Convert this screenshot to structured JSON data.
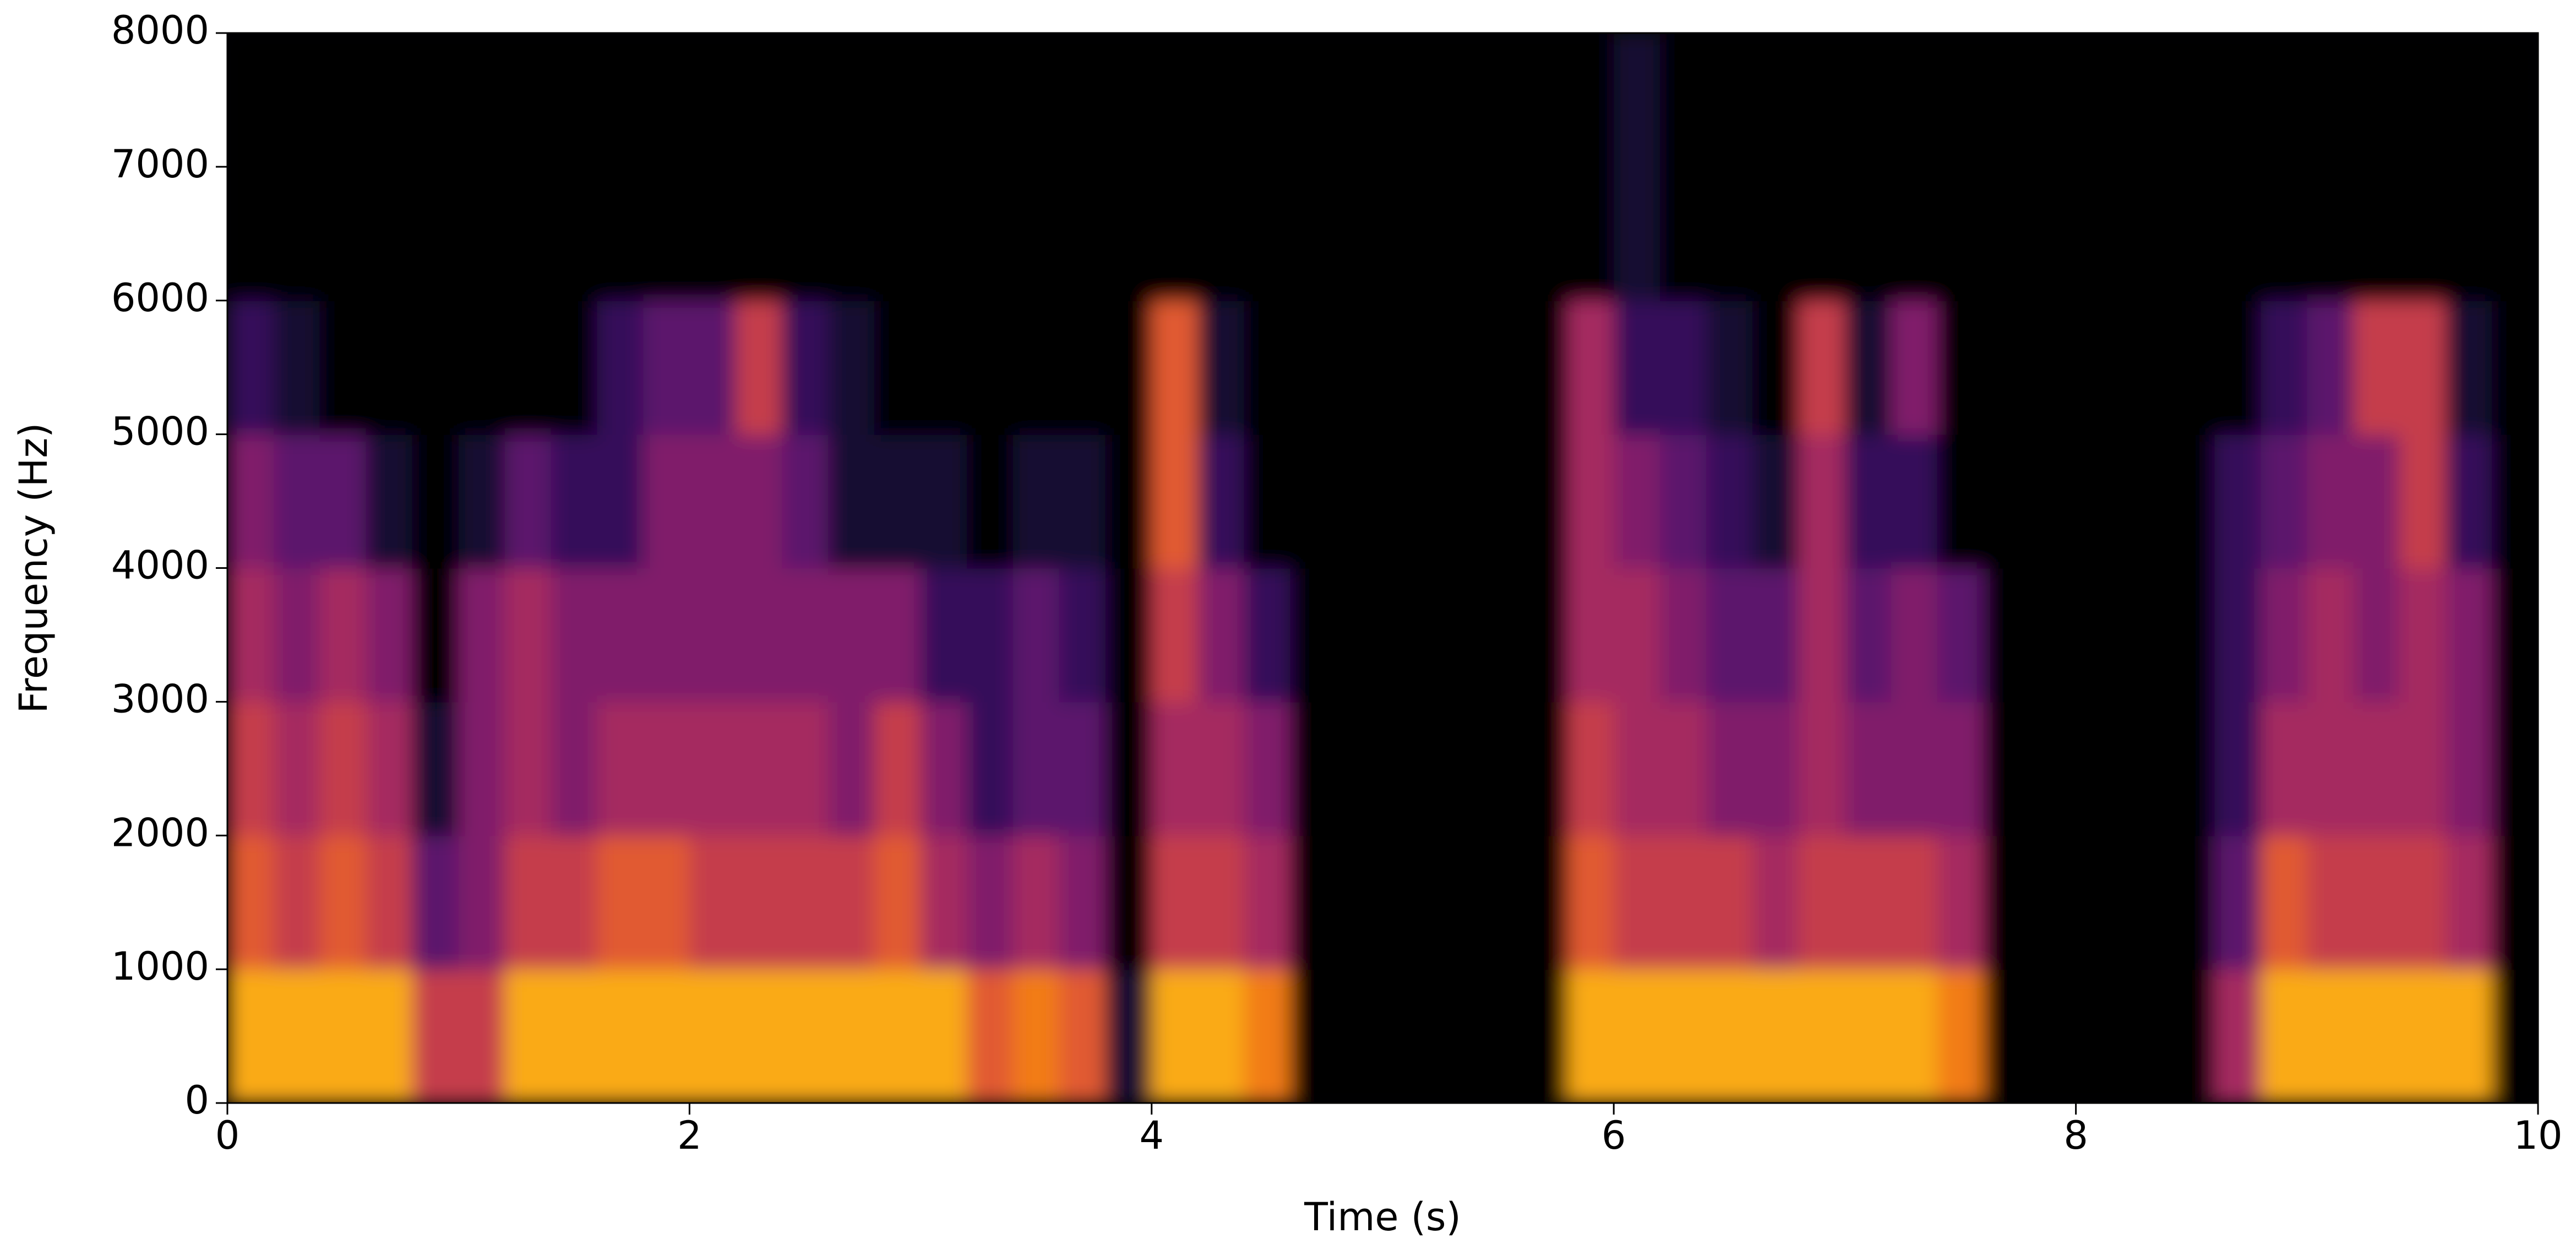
{
  "chart_data": {
    "type": "spectrogram",
    "x_label": "Time (s)",
    "y_label": "Frequency (Hz)",
    "xlim": [
      0,
      10
    ],
    "ylim": [
      0,
      8000
    ],
    "xticks": [
      0,
      2,
      4,
      6,
      8,
      10
    ],
    "yticks": [
      0,
      1000,
      2000,
      3000,
      4000,
      5000,
      6000,
      7000,
      8000
    ],
    "colormap": "inferno",
    "z": [
      [
        0.9,
        0.9,
        0.9,
        0.9,
        0.6,
        0.6,
        0.9,
        0.9,
        0.9,
        0.9,
        0.9,
        0.9,
        0.9,
        0.9,
        0.9,
        0.9,
        0.7,
        0.8,
        0.7,
        0.1,
        0.9,
        0.9,
        0.8,
        0,
        0,
        0,
        0,
        0,
        0,
        0.9,
        0.9,
        0.9,
        0.9,
        0.9,
        0.9,
        0.9,
        0.9,
        0.8,
        0,
        0,
        0,
        0,
        0,
        0.5,
        0.9,
        0.9,
        0.9,
        0.9,
        0.9,
        0
      ],
      [
        0.7,
        0.6,
        0.7,
        0.6,
        0.3,
        0.4,
        0.6,
        0.6,
        0.7,
        0.7,
        0.6,
        0.6,
        0.6,
        0.6,
        0.7,
        0.5,
        0.4,
        0.5,
        0.4,
        0,
        0.6,
        0.6,
        0.5,
        0,
        0,
        0,
        0,
        0,
        0,
        0.7,
        0.6,
        0.6,
        0.6,
        0.5,
        0.6,
        0.6,
        0.6,
        0.5,
        0,
        0,
        0,
        0,
        0,
        0.3,
        0.7,
        0.6,
        0.6,
        0.6,
        0.5,
        0
      ],
      [
        0.6,
        0.5,
        0.6,
        0.5,
        0.1,
        0.4,
        0.5,
        0.4,
        0.5,
        0.5,
        0.5,
        0.5,
        0.5,
        0.4,
        0.6,
        0.4,
        0.2,
        0.3,
        0.3,
        0,
        0.5,
        0.5,
        0.4,
        0,
        0,
        0,
        0,
        0,
        0,
        0.6,
        0.5,
        0.5,
        0.4,
        0.4,
        0.5,
        0.4,
        0.4,
        0.4,
        0,
        0,
        0,
        0,
        0,
        0.2,
        0.5,
        0.5,
        0.5,
        0.5,
        0.4,
        0
      ],
      [
        0.5,
        0.4,
        0.5,
        0.4,
        0,
        0.4,
        0.5,
        0.4,
        0.4,
        0.4,
        0.4,
        0.4,
        0.4,
        0.4,
        0.4,
        0.2,
        0.2,
        0.3,
        0.2,
        0,
        0.6,
        0.4,
        0.2,
        0,
        0,
        0,
        0,
        0,
        0,
        0.5,
        0.5,
        0.4,
        0.3,
        0.3,
        0.5,
        0.3,
        0.4,
        0.3,
        0,
        0,
        0,
        0,
        0,
        0.2,
        0.4,
        0.5,
        0.4,
        0.5,
        0.4,
        0
      ],
      [
        0.4,
        0.3,
        0.3,
        0.1,
        0,
        0.1,
        0.3,
        0.2,
        0.2,
        0.4,
        0.4,
        0.4,
        0.3,
        0.1,
        0.1,
        0.1,
        0,
        0.1,
        0.1,
        0,
        0.7,
        0.2,
        0,
        0,
        0,
        0,
        0,
        0,
        0,
        0.5,
        0.4,
        0.3,
        0.2,
        0.1,
        0.5,
        0.2,
        0.2,
        0,
        0,
        0,
        0,
        0,
        0,
        0.2,
        0.3,
        0.4,
        0.4,
        0.6,
        0.2,
        0
      ],
      [
        0.2,
        0.1,
        0,
        0,
        0,
        0,
        0,
        0,
        0.2,
        0.3,
        0.3,
        0.6,
        0.2,
        0.1,
        0,
        0,
        0,
        0,
        0,
        0,
        0.7,
        0.1,
        0,
        0,
        0,
        0,
        0,
        0,
        0,
        0.5,
        0.2,
        0.2,
        0.1,
        0,
        0.6,
        0.1,
        0.4,
        0,
        0,
        0,
        0,
        0,
        0,
        0,
        0.2,
        0.3,
        0.6,
        0.6,
        0.1,
        0
      ],
      [
        0,
        0,
        0,
        0,
        0,
        0,
        0,
        0,
        0,
        0,
        0,
        0,
        0,
        0,
        0,
        0,
        0,
        0,
        0,
        0,
        0,
        0,
        0,
        0,
        0,
        0,
        0,
        0,
        0,
        0,
        0.1,
        0,
        0,
        0,
        0,
        0,
        0,
        0,
        0,
        0,
        0,
        0,
        0,
        0,
        0,
        0,
        0,
        0,
        0,
        0
      ],
      [
        0,
        0,
        0,
        0,
        0,
        0,
        0,
        0,
        0,
        0,
        0,
        0,
        0,
        0,
        0,
        0,
        0,
        0,
        0,
        0,
        0,
        0,
        0,
        0,
        0,
        0,
        0,
        0,
        0,
        0,
        0.1,
        0,
        0,
        0,
        0,
        0,
        0,
        0,
        0,
        0,
        0,
        0,
        0,
        0,
        0,
        0,
        0,
        0,
        0,
        0
      ]
    ]
  }
}
